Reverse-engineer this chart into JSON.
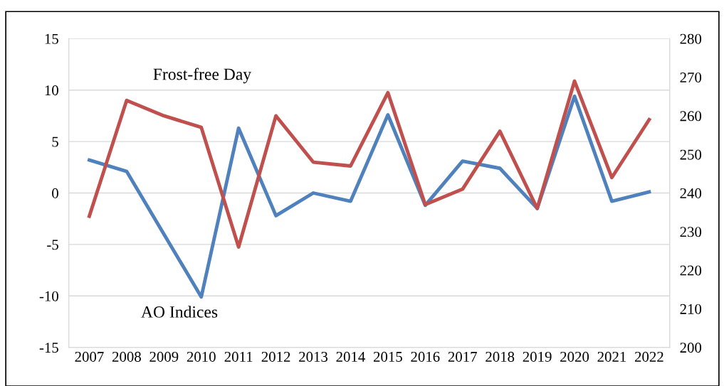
{
  "chart_data": {
    "type": "line",
    "categories": [
      "2007",
      "2008",
      "2009",
      "2010",
      "2011",
      "2012",
      "2013",
      "2014",
      "2015",
      "2016",
      "2017",
      "2018",
      "2019",
      "2020",
      "2021",
      "2022"
    ],
    "series": [
      {
        "name": "Frost-free Day",
        "color": "#c0504d",
        "axis": "y2",
        "values": [
          234,
          264,
          260,
          257,
          226,
          260,
          248,
          247,
          266,
          237,
          241,
          256,
          236,
          269,
          244,
          259
        ]
      },
      {
        "name": "AO Indices",
        "color": "#4f81bd",
        "values": [
          3.2,
          2.1,
          -4.0,
          -10.1,
          6.3,
          -2.2,
          0.0,
          -0.8,
          7.6,
          -1.2,
          3.1,
          2.4,
          -1.5,
          9.4,
          -0.8,
          0.1
        ]
      }
    ],
    "ylim": [
      -15,
      15
    ],
    "yticks": [
      -15,
      -10,
      -5,
      0,
      5,
      10,
      15
    ],
    "y2lim": [
      200,
      280
    ],
    "y2ticks": [
      200,
      210,
      220,
      230,
      240,
      250,
      260,
      270,
      280
    ],
    "grid": "y",
    "legend": false,
    "marker": "none",
    "line_style": "solid"
  }
}
